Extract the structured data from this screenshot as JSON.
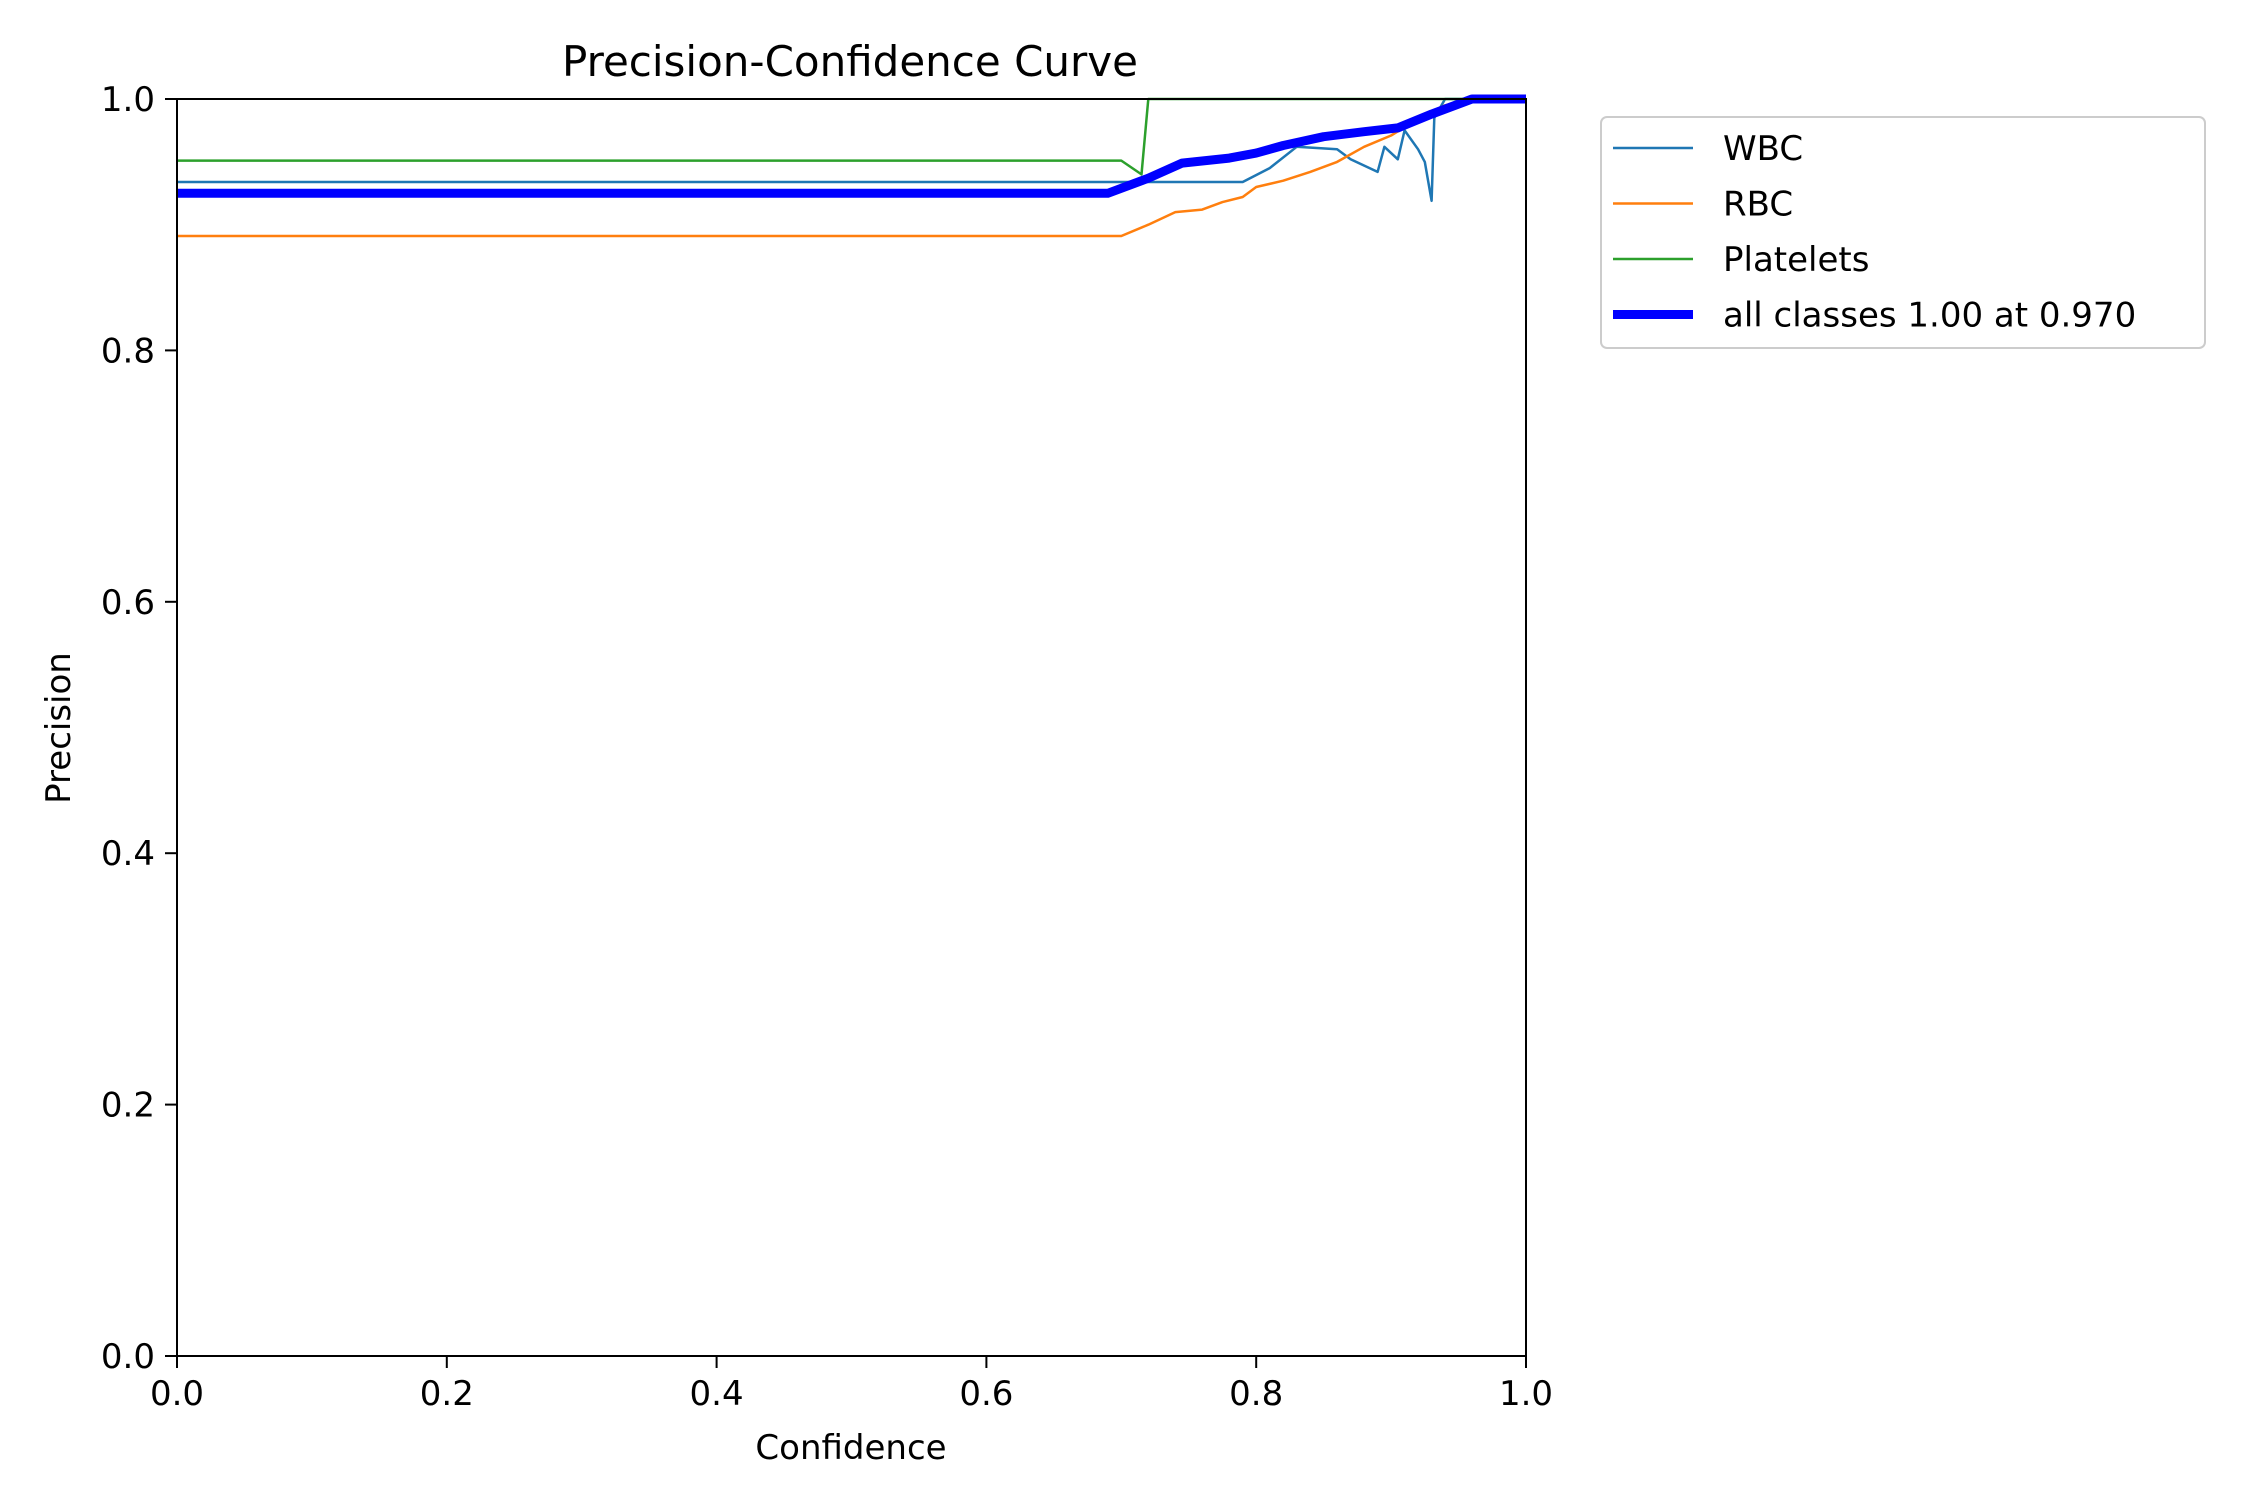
{
  "chart_data": {
    "type": "line",
    "title": "Precision-Confidence Curve",
    "xlabel": "Confidence",
    "ylabel": "Precision",
    "xlim": [
      0.0,
      1.0
    ],
    "ylim": [
      0.0,
      1.0
    ],
    "xticks": [
      "0.0",
      "0.2",
      "0.4",
      "0.6",
      "0.8",
      "1.0"
    ],
    "yticks": [
      "0.0",
      "0.2",
      "0.4",
      "0.6",
      "0.8",
      "1.0"
    ],
    "grid": false,
    "legend_position": "outside-top-right",
    "series": [
      {
        "name": "WBC",
        "color": "#1f77b4",
        "line_style": "thin",
        "points": [
          [
            0.0,
            0.934
          ],
          [
            0.7,
            0.934
          ],
          [
            0.79,
            0.934
          ],
          [
            0.81,
            0.945
          ],
          [
            0.83,
            0.962
          ],
          [
            0.86,
            0.96
          ],
          [
            0.87,
            0.952
          ],
          [
            0.89,
            0.942
          ],
          [
            0.895,
            0.962
          ],
          [
            0.905,
            0.952
          ],
          [
            0.91,
            0.975
          ],
          [
            0.92,
            0.96
          ],
          [
            0.925,
            0.95
          ],
          [
            0.93,
            0.919
          ],
          [
            0.932,
            0.985
          ],
          [
            0.94,
            1.0
          ],
          [
            1.0,
            1.0
          ]
        ]
      },
      {
        "name": "RBC",
        "color": "#ff7f0e",
        "line_style": "thin",
        "points": [
          [
            0.0,
            0.891
          ],
          [
            0.7,
            0.891
          ],
          [
            0.72,
            0.9
          ],
          [
            0.74,
            0.91
          ],
          [
            0.76,
            0.912
          ],
          [
            0.775,
            0.918
          ],
          [
            0.79,
            0.922
          ],
          [
            0.8,
            0.93
          ],
          [
            0.82,
            0.935
          ],
          [
            0.84,
            0.942
          ],
          [
            0.86,
            0.95
          ],
          [
            0.88,
            0.962
          ],
          [
            0.9,
            0.971
          ],
          [
            0.92,
            0.984
          ],
          [
            0.94,
            0.995
          ],
          [
            0.96,
            1.0
          ],
          [
            1.0,
            1.0
          ]
        ]
      },
      {
        "name": "Platelets",
        "color": "#2ca02c",
        "line_style": "thin",
        "points": [
          [
            0.0,
            0.951
          ],
          [
            0.7,
            0.951
          ],
          [
            0.715,
            0.94
          ],
          [
            0.72,
            1.0
          ],
          [
            1.0,
            1.0
          ]
        ]
      },
      {
        "name": "all classes 1.00 at 0.970",
        "color": "#0000ff",
        "line_style": "thick",
        "points": [
          [
            0.0,
            0.925
          ],
          [
            0.69,
            0.925
          ],
          [
            0.72,
            0.937
          ],
          [
            0.745,
            0.949
          ],
          [
            0.78,
            0.953
          ],
          [
            0.8,
            0.957
          ],
          [
            0.82,
            0.963
          ],
          [
            0.85,
            0.97
          ],
          [
            0.88,
            0.974
          ],
          [
            0.905,
            0.977
          ],
          [
            0.93,
            0.988
          ],
          [
            0.96,
            1.0
          ],
          [
            1.0,
            1.0
          ]
        ]
      }
    ]
  }
}
